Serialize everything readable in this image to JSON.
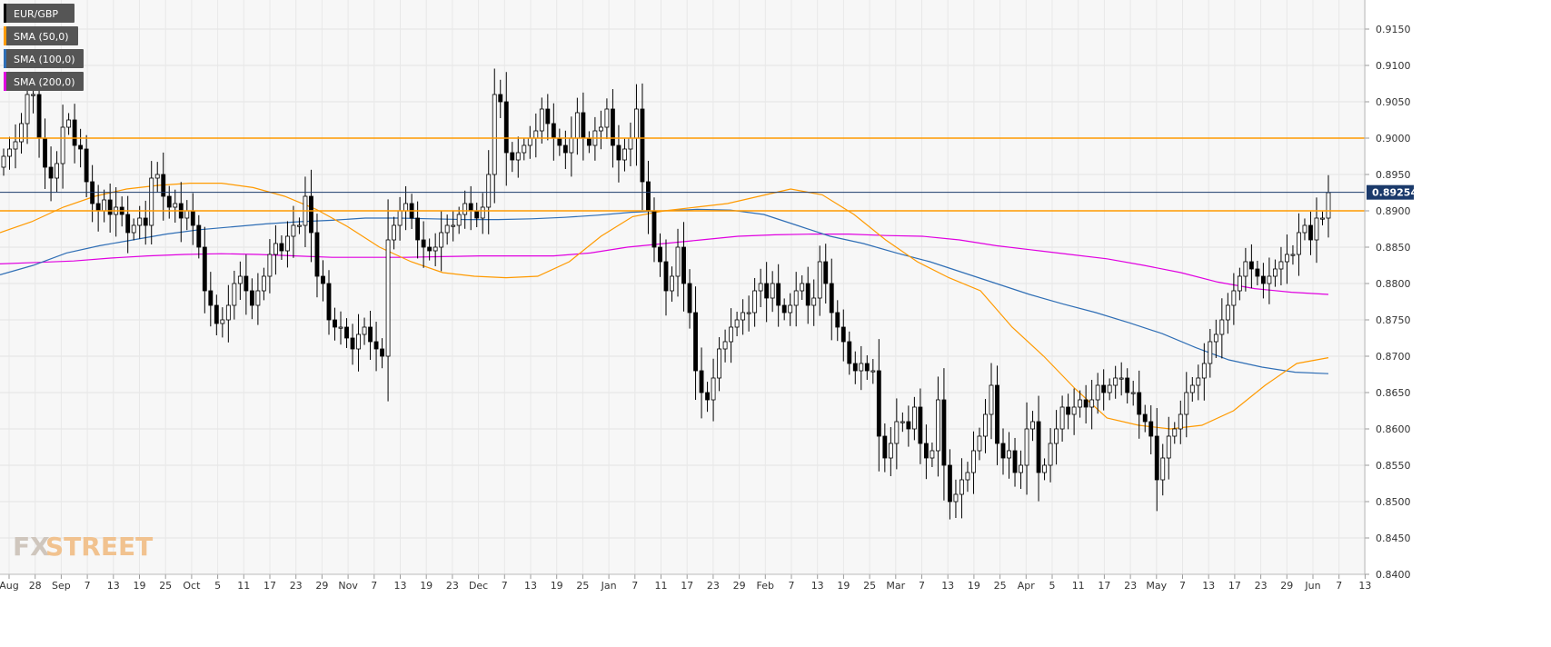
{
  "chart_data": {
    "type": "candlestick",
    "instrument": "EUR/GBP",
    "legend": [
      {
        "label": "EUR/GBP",
        "color": "#000000"
      },
      {
        "label": "SMA (50,0)",
        "color": "#ff9a00"
      },
      {
        "label": "SMA (100,0)",
        "color": "#2f6eb5"
      },
      {
        "label": "SMA (200,0)",
        "color": "#e000e0"
      }
    ],
    "ylim": [
      0.84,
      0.919
    ],
    "y_ticks": [
      "0.8400",
      "0.8450",
      "0.8500",
      "0.8550",
      "0.8600",
      "0.8650",
      "0.8700",
      "0.8750",
      "0.8800",
      "0.8850",
      "0.8900",
      "0.8950",
      "0.9000",
      "0.9050",
      "0.9100",
      "0.9150"
    ],
    "x_ticks": [
      "Aug",
      "28",
      "Sep",
      "7",
      "13",
      "19",
      "25",
      "Oct",
      "5",
      "11",
      "17",
      "23",
      "29",
      "Nov",
      "7",
      "13",
      "19",
      "23",
      "Dec",
      "7",
      "13",
      "19",
      "25",
      "Jan",
      "7",
      "11",
      "17",
      "23",
      "29",
      "Feb",
      "7",
      "13",
      "19",
      "25",
      "Mar",
      "7",
      "13",
      "19",
      "25",
      "Apr",
      "5",
      "11",
      "17",
      "23",
      "May",
      "7",
      "13",
      "17",
      "23",
      "29",
      "Jun",
      "7",
      "13"
    ],
    "current_price": "0.89254",
    "current_price_value": 0.89254,
    "horizontal_levels": [
      0.9,
      0.89
    ],
    "grid": "on",
    "legend_placement": "top-left",
    "close_series": [
      0.8975,
      0.8985,
      0.8995,
      0.902,
      0.906,
      0.906,
      0.9,
      0.896,
      0.8945,
      0.8965,
      0.9015,
      0.9025,
      0.899,
      0.8985,
      0.894,
      0.891,
      0.89,
      0.8915,
      0.8895,
      0.8905,
      0.8895,
      0.887,
      0.888,
      0.889,
      0.888,
      0.8945,
      0.895,
      0.892,
      0.8905,
      0.891,
      0.889,
      0.89,
      0.888,
      0.885,
      0.879,
      0.877,
      0.8745,
      0.875,
      0.877,
      0.88,
      0.881,
      0.879,
      0.877,
      0.879,
      0.881,
      0.884,
      0.8855,
      0.8845,
      0.8865,
      0.888,
      0.888,
      0.892,
      0.887,
      0.881,
      0.88,
      0.875,
      0.874,
      0.874,
      0.8725,
      0.871,
      0.873,
      0.874,
      0.872,
      0.871,
      0.87,
      0.886,
      0.888,
      0.89,
      0.891,
      0.889,
      0.886,
      0.885,
      0.8845,
      0.885,
      0.887,
      0.888,
      0.888,
      0.8895,
      0.891,
      0.89,
      0.889,
      0.8905,
      0.895,
      0.906,
      0.905,
      0.898,
      0.897,
      0.898,
      0.899,
      0.9,
      0.901,
      0.904,
      0.902,
      0.9,
      0.899,
      0.898,
      0.9,
      0.9035,
      0.9,
      0.899,
      0.901,
      0.9015,
      0.904,
      0.899,
      0.897,
      0.8985,
      0.9,
      0.904,
      0.894,
      0.89,
      0.885,
      0.883,
      0.879,
      0.881,
      0.885,
      0.88,
      0.876,
      0.868,
      0.865,
      0.864,
      0.867,
      0.871,
      0.872,
      0.874,
      0.875,
      0.876,
      0.876,
      0.879,
      0.88,
      0.878,
      0.88,
      0.877,
      0.876,
      0.877,
      0.879,
      0.88,
      0.877,
      0.878,
      0.883,
      0.88,
      0.876,
      0.874,
      0.872,
      0.869,
      0.868,
      0.869,
      0.868,
      0.868,
      0.859,
      0.856,
      0.858,
      0.861,
      0.861,
      0.86,
      0.863,
      0.858,
      0.856,
      0.857,
      0.864,
      0.855,
      0.85,
      0.851,
      0.853,
      0.854,
      0.857,
      0.859,
      0.862,
      0.866,
      0.858,
      0.856,
      0.857,
      0.854,
      0.855,
      0.86,
      0.861,
      0.854,
      0.855,
      0.858,
      0.86,
      0.863,
      0.862,
      0.863,
      0.864,
      0.863,
      0.864,
      0.866,
      0.865,
      0.866,
      0.867,
      0.867,
      0.865,
      0.865,
      0.862,
      0.861,
      0.859,
      0.853,
      0.856,
      0.859,
      0.86,
      0.862,
      0.865,
      0.866,
      0.867,
      0.869,
      0.872,
      0.873,
      0.875,
      0.877,
      0.879,
      0.881,
      0.883,
      0.882,
      0.881,
      0.88,
      0.881,
      0.882,
      0.883,
      0.884,
      0.884,
      0.887,
      0.888,
      0.886,
      0.889,
      0.889,
      0.8925
    ],
    "sma50": [
      0.887,
      0.8885,
      0.8905,
      0.892,
      0.893,
      0.8935,
      0.8938,
      0.8938,
      0.8932,
      0.892,
      0.8902,
      0.8878,
      0.885,
      0.883,
      0.8815,
      0.881,
      0.8808,
      0.881,
      0.883,
      0.8865,
      0.8892,
      0.89,
      0.8905,
      0.891,
      0.892,
      0.893,
      0.8922,
      0.8895,
      0.886,
      0.883,
      0.8808,
      0.879,
      0.874,
      0.87,
      0.8655,
      0.8615,
      0.8605,
      0.86,
      0.8605,
      0.8625,
      0.866,
      0.869,
      0.8698
    ],
    "sma100": [
      0.8812,
      0.8825,
      0.8842,
      0.8852,
      0.886,
      0.8868,
      0.8874,
      0.8878,
      0.8882,
      0.8885,
      0.8887,
      0.889,
      0.889,
      0.8889,
      0.8888,
      0.8888,
      0.8889,
      0.8891,
      0.8894,
      0.8898,
      0.89,
      0.8902,
      0.8901,
      0.8895,
      0.888,
      0.8865,
      0.8855,
      0.8842,
      0.883,
      0.8815,
      0.88,
      0.8785,
      0.8772,
      0.876,
      0.8746,
      0.8731,
      0.8712,
      0.8695,
      0.8685,
      0.8678,
      0.8676
    ],
    "sma200": [
      0.8827,
      0.8829,
      0.8831,
      0.8835,
      0.8838,
      0.884,
      0.8841,
      0.884,
      0.8838,
      0.8836,
      0.8836,
      0.8836,
      0.8837,
      0.8838,
      0.8838,
      0.8838,
      0.8842,
      0.885,
      0.8855,
      0.886,
      0.8865,
      0.8867,
      0.8868,
      0.8868,
      0.8866,
      0.8865,
      0.886,
      0.8852,
      0.8846,
      0.884,
      0.8834,
      0.8825,
      0.8815,
      0.8802,
      0.8793,
      0.8788,
      0.8785
    ]
  },
  "watermark": {
    "part1": "FX",
    "part2": "STREET"
  }
}
